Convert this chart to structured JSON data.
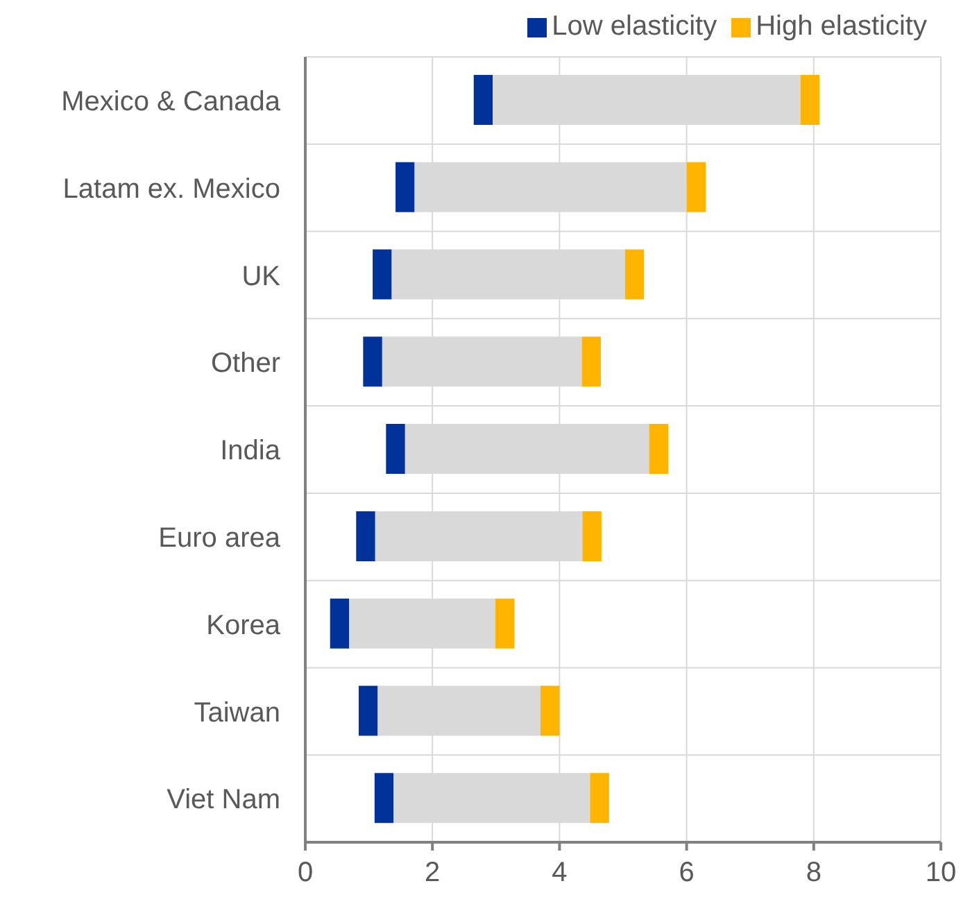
{
  "chart_data": {
    "type": "bar",
    "orientation": "horizontal",
    "categories": [
      "Mexico & Canada",
      "Latam ex. Mexico",
      "UK",
      "Other",
      "India",
      "Euro area",
      "Korea",
      "Taiwan",
      "Viet Nam"
    ],
    "series": [
      {
        "name": "Low elasticity",
        "color": "#003299",
        "base": [
          2.65,
          1.42,
          1.06,
          0.91,
          1.27,
          0.8,
          0.39,
          0.84,
          1.09
        ],
        "values": [
          0.3,
          0.3,
          0.3,
          0.3,
          0.3,
          0.3,
          0.3,
          0.3,
          0.3
        ]
      },
      {
        "color": "#d9d9d9",
        "base": [
          2.95,
          1.72,
          1.36,
          1.21,
          1.57,
          1.1,
          0.69,
          1.14,
          1.39
        ],
        "values": [
          4.84,
          4.28,
          3.67,
          3.14,
          3.84,
          3.26,
          2.3,
          2.56,
          3.09
        ]
      },
      {
        "name": "High elasticity",
        "color": "#ffb400",
        "base": [
          7.79,
          6.0,
          5.03,
          4.35,
          5.41,
          4.36,
          2.99,
          3.7,
          4.48
        ],
        "values": [
          0.3,
          0.3,
          0.3,
          0.3,
          0.3,
          0.3,
          0.3,
          0.3,
          0.3
        ]
      }
    ],
    "xlim": [
      0,
      10
    ],
    "xticks": [
      0,
      2,
      4,
      6,
      8,
      10
    ],
    "grid": true,
    "legend": "top right"
  }
}
